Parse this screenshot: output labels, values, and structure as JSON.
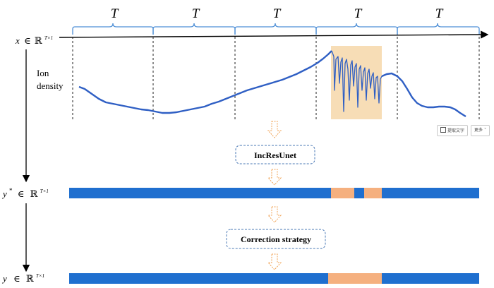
{
  "segment_labels": [
    "T",
    "T",
    "T",
    "T",
    "T"
  ],
  "x_label": {
    "var": "x",
    "op": "∈",
    "set": "ℝ",
    "dims": "T×1"
  },
  "y_star_label": {
    "var": "y",
    "star": "*",
    "op": "∈",
    "set": "ℝ",
    "dims": "T×1"
  },
  "y_label": {
    "var": "y",
    "op": "∈",
    "set": "ℝ",
    "dims": "T×1"
  },
  "signal_label": [
    "Ion",
    "density"
  ],
  "model_box": "IncResUnet",
  "correction_box": "Correction strategy",
  "ocr_toolbar": {
    "extract_text": "提取文字",
    "more": "更多"
  },
  "colors": {
    "signal": "#2f5fc4",
    "bar": "#1f6fcf",
    "highlight": "#f7ddb6",
    "mask": "#f5b07f",
    "brace": "#4e8fd6",
    "dashed_box": "#4a78b5",
    "flow_arrow": "#f0a050"
  }
}
